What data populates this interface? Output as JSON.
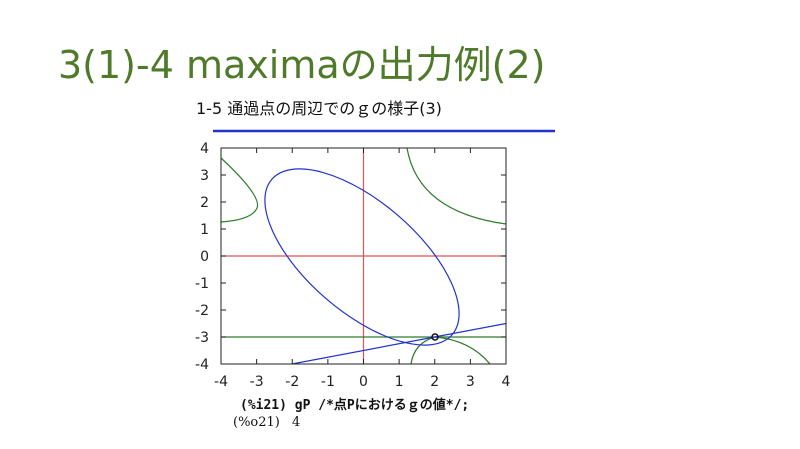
{
  "slide": {
    "title": "3(1)-4 maximaの出力例(2)",
    "subtitle": "1-5 通過点の周辺でのｇの様子(3)"
  },
  "plot": {
    "xlim": [
      -4,
      4
    ],
    "ylim": [
      -4,
      4
    ],
    "xticks": [
      -4,
      -3,
      -2,
      -1,
      0,
      1,
      2,
      3,
      4
    ],
    "yticks": [
      -4,
      -3,
      -2,
      -1,
      0,
      1,
      2,
      3,
      4
    ]
  },
  "code": {
    "input": "(%i21) gP /*点Pにおけるｇの値*/;",
    "output_label": "(%o21)",
    "output_value": "4"
  }
}
